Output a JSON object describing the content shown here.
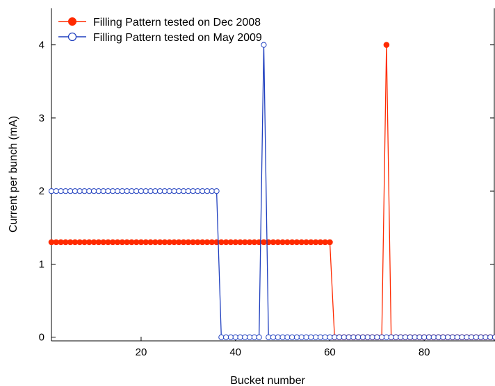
{
  "chart_data": {
    "type": "line",
    "xlabel": "Bucket number",
    "ylabel": "Current per bunch (mA)",
    "xlim": [
      1,
      95
    ],
    "ylim": [
      -0.05,
      4.5
    ],
    "x_ticks": [
      20,
      40,
      60,
      80
    ],
    "y_ticks": [
      0,
      1,
      2,
      3,
      4
    ],
    "legend_position": "top-left",
    "grid": false,
    "series": [
      {
        "name": "Filling Pattern tested on Dec 2008",
        "color": "#ff2a00",
        "marker": "filled-circle",
        "x": [
          1,
          2,
          3,
          4,
          5,
          6,
          7,
          8,
          9,
          10,
          11,
          12,
          13,
          14,
          15,
          16,
          17,
          18,
          19,
          20,
          21,
          22,
          23,
          24,
          25,
          26,
          27,
          28,
          29,
          30,
          31,
          32,
          33,
          34,
          35,
          36,
          37,
          38,
          39,
          40,
          41,
          42,
          43,
          44,
          45,
          46,
          47,
          48,
          49,
          50,
          51,
          52,
          53,
          54,
          55,
          56,
          57,
          58,
          59,
          60,
          61,
          62,
          63,
          64,
          65,
          66,
          67,
          68,
          69,
          70,
          71,
          72,
          73,
          74,
          75,
          76,
          77,
          78,
          79,
          80,
          81,
          82,
          83,
          84,
          85,
          86,
          87,
          88,
          89,
          90,
          91,
          92,
          93,
          94,
          95
        ],
        "values": [
          1.3,
          1.3,
          1.3,
          1.3,
          1.3,
          1.3,
          1.3,
          1.3,
          1.3,
          1.3,
          1.3,
          1.3,
          1.3,
          1.3,
          1.3,
          1.3,
          1.3,
          1.3,
          1.3,
          1.3,
          1.3,
          1.3,
          1.3,
          1.3,
          1.3,
          1.3,
          1.3,
          1.3,
          1.3,
          1.3,
          1.3,
          1.3,
          1.3,
          1.3,
          1.3,
          1.3,
          1.3,
          1.3,
          1.3,
          1.3,
          1.3,
          1.3,
          1.3,
          1.3,
          1.3,
          1.3,
          1.3,
          1.3,
          1.3,
          1.3,
          1.3,
          1.3,
          1.3,
          1.3,
          1.3,
          1.3,
          1.3,
          1.3,
          1.3,
          1.3,
          0,
          0,
          0,
          0,
          0,
          0,
          0,
          0,
          0,
          0,
          0,
          4,
          0,
          0,
          0,
          0,
          0,
          0,
          0,
          0,
          0,
          0,
          0,
          0,
          0,
          0,
          0,
          0,
          0,
          0,
          0,
          0,
          0,
          0,
          0
        ]
      },
      {
        "name": "Filling Pattern tested on May 2009",
        "color": "#1f3fbf",
        "marker": "open-circle",
        "x": [
          1,
          2,
          3,
          4,
          5,
          6,
          7,
          8,
          9,
          10,
          11,
          12,
          13,
          14,
          15,
          16,
          17,
          18,
          19,
          20,
          21,
          22,
          23,
          24,
          25,
          26,
          27,
          28,
          29,
          30,
          31,
          32,
          33,
          34,
          35,
          36,
          37,
          38,
          39,
          40,
          41,
          42,
          43,
          44,
          45,
          46,
          47,
          48,
          49,
          50,
          51,
          52,
          53,
          54,
          55,
          56,
          57,
          58,
          59,
          60,
          61,
          62,
          63,
          64,
          65,
          66,
          67,
          68,
          69,
          70,
          71,
          72,
          73,
          74,
          75,
          76,
          77,
          78,
          79,
          80,
          81,
          82,
          83,
          84,
          85,
          86,
          87,
          88,
          89,
          90,
          91,
          92,
          93,
          94,
          95
        ],
        "values": [
          2,
          2,
          2,
          2,
          2,
          2,
          2,
          2,
          2,
          2,
          2,
          2,
          2,
          2,
          2,
          2,
          2,
          2,
          2,
          2,
          2,
          2,
          2,
          2,
          2,
          2,
          2,
          2,
          2,
          2,
          2,
          2,
          2,
          2,
          2,
          2,
          0,
          0,
          0,
          0,
          0,
          0,
          0,
          0,
          0,
          4,
          0,
          0,
          0,
          0,
          0,
          0,
          0,
          0,
          0,
          0,
          0,
          0,
          0,
          0,
          0,
          0,
          0,
          0,
          0,
          0,
          0,
          0,
          0,
          0,
          0,
          0,
          0,
          0,
          0,
          0,
          0,
          0,
          0,
          0,
          0,
          0,
          0,
          0,
          0,
          0,
          0,
          0,
          0,
          0,
          0,
          0,
          0,
          0,
          0
        ]
      }
    ]
  }
}
